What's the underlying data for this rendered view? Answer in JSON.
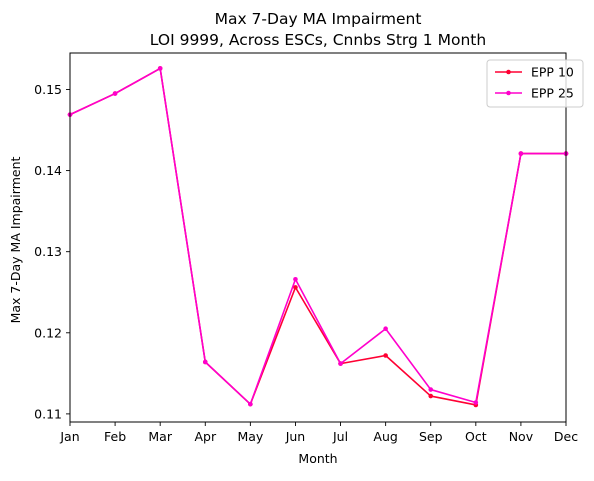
{
  "chart_data": {
    "type": "line",
    "title": "Max 7-Day MA Impairment",
    "subtitle": "LOI 9999, Across ESCs, Cnnbs Strg 1 Month",
    "xlabel": "Month",
    "ylabel": "Max 7-Day MA Impairment",
    "categories": [
      "Jan",
      "Feb",
      "Mar",
      "Apr",
      "May",
      "Jun",
      "Jul",
      "Aug",
      "Sep",
      "Oct",
      "Nov",
      "Dec"
    ],
    "ylim": [
      0.109,
      0.1545
    ],
    "yticks": [
      0.11,
      0.12,
      0.13,
      0.14,
      0.15
    ],
    "ytick_labels": [
      "0.11",
      "0.12",
      "0.13",
      "0.14",
      "0.15"
    ],
    "grid": false,
    "legend_position": "top-right",
    "series": [
      {
        "name": "EPP 10",
        "color": "#ff0033",
        "marker": "circle",
        "values": [
          0.1469,
          0.1495,
          0.1526,
          0.1164,
          0.1112,
          0.1256,
          0.1162,
          0.1172,
          0.1122,
          0.1111,
          0.1421,
          0.1421
        ]
      },
      {
        "name": "EPP 25",
        "color": "#ff00cc",
        "marker": "circle",
        "values": [
          0.1469,
          0.1495,
          0.1526,
          0.1164,
          0.1112,
          0.1266,
          0.1162,
          0.1205,
          0.113,
          0.1114,
          0.1421,
          0.1421
        ]
      }
    ]
  }
}
